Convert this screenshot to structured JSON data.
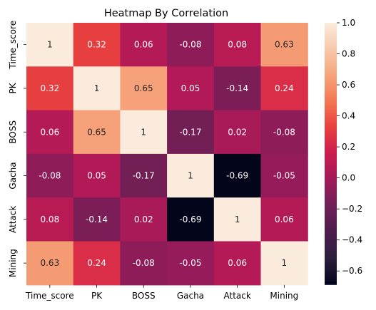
{
  "chart_data": {
    "type": "heatmap",
    "title": "Heatmap By Correlation",
    "x_categories": [
      "Time_score",
      "PK",
      "BOSS",
      "Gacha",
      "Attack",
      "Mining"
    ],
    "y_categories": [
      "Time_score",
      "PK",
      "BOSS",
      "Gacha",
      "Attack",
      "Mining"
    ],
    "values": [
      [
        1,
        0.32,
        0.06,
        -0.08,
        0.08,
        0.63
      ],
      [
        0.32,
        1,
        0.65,
        0.05,
        -0.14,
        0.24
      ],
      [
        0.06,
        0.65,
        1,
        -0.17,
        0.02,
        -0.08
      ],
      [
        -0.08,
        0.05,
        -0.17,
        1,
        -0.69,
        -0.05
      ],
      [
        0.08,
        -0.14,
        0.02,
        -0.69,
        1,
        0.06
      ],
      [
        0.63,
        0.24,
        -0.08,
        -0.05,
        0.06,
        1
      ]
    ],
    "value_labels": [
      [
        "1",
        "0.32",
        "0.06",
        "-0.08",
        "0.08",
        "0.63"
      ],
      [
        "0.32",
        "1",
        "0.65",
        "0.05",
        "-0.14",
        "0.24"
      ],
      [
        "0.06",
        "0.65",
        "1",
        "-0.17",
        "0.02",
        "-0.08"
      ],
      [
        "-0.08",
        "0.05",
        "-0.17",
        "1",
        "-0.69",
        "-0.05"
      ],
      [
        "0.08",
        "-0.14",
        "0.02",
        "-0.69",
        "1",
        "0.06"
      ],
      [
        "0.63",
        "0.24",
        "-0.08",
        "-0.05",
        "0.06",
        "1"
      ]
    ],
    "colorbar": {
      "vmin": -0.69,
      "vmax": 1.0,
      "ticks": [
        1.0,
        0.8,
        0.6,
        0.4,
        0.2,
        0.0,
        -0.2,
        -0.4,
        -0.6
      ],
      "tick_labels": [
        "1.0",
        "0.8",
        "0.6",
        "0.4",
        "0.2",
        "0.0",
        "−0.2",
        "−0.4",
        "−0.6"
      ]
    },
    "colormap": "rocket",
    "colormap_stops": [
      "#03051a",
      "#2c1e3e",
      "#4c1d4b",
      "#6e1f56",
      "#a11a5b",
      "#cb1b4f",
      "#e83f3f",
      "#f37651",
      "#f6a47c",
      "#f7c9aa",
      "#faebdd"
    ]
  }
}
